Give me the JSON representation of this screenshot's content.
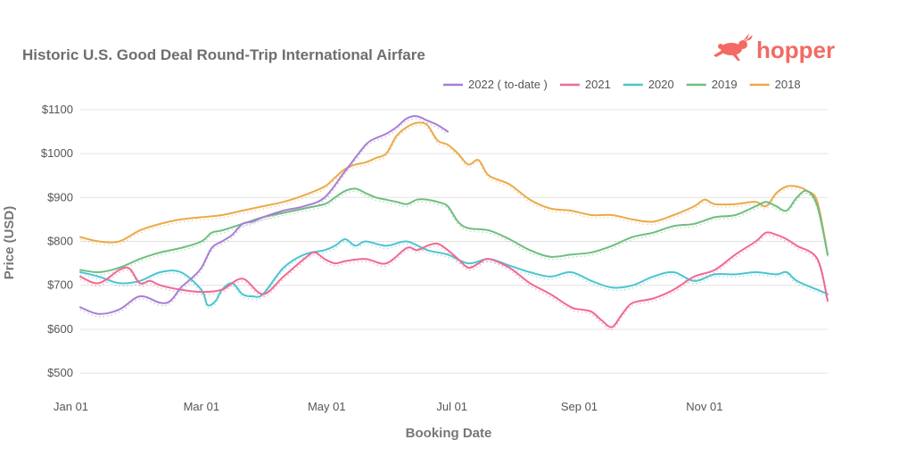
{
  "chart_data": {
    "type": "line",
    "title": "Historic U.S. Good Deal Round-Trip International Airfare",
    "xlabel": "Booking Date",
    "ylabel": "Price (USD)",
    "x_unit": "day_of_year",
    "xlim": [
      1,
      365
    ],
    "ylim": [
      480,
      1120
    ],
    "yticks": [
      500,
      600,
      700,
      800,
      900,
      1000,
      1100
    ],
    "ytick_labels": [
      "$500",
      "$600",
      "$700",
      "$800",
      "$900",
      "$1000",
      "$1100"
    ],
    "xticks": [
      1,
      60,
      121,
      182,
      244,
      305
    ],
    "xtick_labels": [
      "Jan 01",
      "Mar 01",
      "May 01",
      "Jul 01",
      "Sep 01",
      "Nov 01"
    ],
    "grid": true,
    "legend_position": "top-right",
    "series": [
      {
        "name": "2022 ( to-date )",
        "color": "#a77fd1",
        "x": [
          1,
          10,
          20,
          30,
          40,
          45,
          50,
          55,
          60,
          65,
          70,
          75,
          80,
          85,
          90,
          100,
          110,
          120,
          130,
          140,
          145,
          150,
          155,
          160,
          165,
          170,
          175,
          180
        ],
        "y": [
          650,
          635,
          645,
          675,
          660,
          665,
          695,
          715,
          740,
          785,
          800,
          815,
          840,
          845,
          855,
          870,
          880,
          900,
          960,
          1020,
          1035,
          1045,
          1060,
          1080,
          1085,
          1075,
          1065,
          1050
        ]
      },
      {
        "name": "2021",
        "color": "#ee6994",
        "x": [
          1,
          10,
          20,
          25,
          30,
          35,
          40,
          50,
          60,
          70,
          80,
          90,
          100,
          110,
          115,
          120,
          125,
          130,
          140,
          150,
          160,
          165,
          170,
          175,
          180,
          185,
          190,
          195,
          200,
          210,
          220,
          230,
          240,
          245,
          250,
          255,
          260,
          265,
          270,
          280,
          290,
          300,
          310,
          320,
          330,
          335,
          340,
          345,
          350,
          360,
          365
        ],
        "y": [
          720,
          705,
          735,
          738,
          705,
          710,
          700,
          690,
          685,
          690,
          715,
          680,
          720,
          760,
          775,
          760,
          750,
          755,
          760,
          750,
          785,
          780,
          790,
          795,
          780,
          760,
          740,
          750,
          760,
          740,
          705,
          680,
          650,
          645,
          640,
          620,
          605,
          635,
          660,
          670,
          690,
          720,
          735,
          770,
          800,
          820,
          815,
          805,
          790,
          760,
          665
        ]
      },
      {
        "name": "2020",
        "color": "#4dc4cf",
        "x": [
          1,
          10,
          20,
          30,
          40,
          50,
          60,
          63,
          67,
          70,
          75,
          80,
          85,
          90,
          100,
          110,
          120,
          125,
          130,
          135,
          140,
          150,
          160,
          170,
          180,
          190,
          200,
          210,
          220,
          230,
          240,
          250,
          260,
          270,
          280,
          290,
          300,
          310,
          320,
          330,
          340,
          345,
          350,
          360,
          365
        ],
        "y": [
          730,
          720,
          705,
          710,
          730,
          730,
          690,
          655,
          665,
          690,
          705,
          680,
          675,
          680,
          740,
          770,
          780,
          790,
          805,
          790,
          800,
          790,
          800,
          780,
          770,
          750,
          760,
          745,
          730,
          720,
          730,
          710,
          695,
          700,
          720,
          730,
          710,
          725,
          725,
          730,
          725,
          730,
          710,
          690,
          680
        ]
      },
      {
        "name": "2019",
        "color": "#6fbd80",
        "x": [
          1,
          10,
          20,
          30,
          40,
          50,
          60,
          65,
          70,
          80,
          90,
          100,
          110,
          120,
          125,
          130,
          135,
          140,
          145,
          150,
          155,
          160,
          165,
          170,
          175,
          180,
          185,
          190,
          200,
          210,
          220,
          230,
          240,
          250,
          260,
          270,
          280,
          290,
          300,
          310,
          320,
          330,
          335,
          340,
          345,
          350,
          355,
          360,
          365
        ],
        "y": [
          735,
          730,
          740,
          760,
          775,
          785,
          800,
          820,
          825,
          840,
          855,
          865,
          875,
          885,
          900,
          915,
          920,
          910,
          900,
          895,
          890,
          885,
          895,
          895,
          890,
          880,
          845,
          830,
          825,
          805,
          780,
          765,
          770,
          775,
          790,
          810,
          820,
          835,
          840,
          855,
          860,
          880,
          890,
          880,
          870,
          900,
          915,
          880,
          770
        ]
      },
      {
        "name": "2018",
        "color": "#eaaa4a",
        "x": [
          1,
          10,
          20,
          30,
          40,
          50,
          60,
          70,
          80,
          90,
          100,
          110,
          120,
          125,
          130,
          135,
          140,
          145,
          150,
          155,
          160,
          165,
          170,
          175,
          180,
          185,
          190,
          195,
          200,
          210,
          220,
          230,
          240,
          250,
          260,
          270,
          280,
          290,
          300,
          305,
          310,
          320,
          330,
          335,
          340,
          345,
          350,
          355,
          360,
          365
        ],
        "y": [
          810,
          800,
          800,
          825,
          840,
          850,
          855,
          860,
          870,
          880,
          890,
          905,
          925,
          945,
          965,
          975,
          980,
          990,
          1000,
          1040,
          1060,
          1070,
          1065,
          1030,
          1020,
          1000,
          975,
          985,
          950,
          930,
          895,
          875,
          870,
          860,
          860,
          850,
          845,
          860,
          880,
          895,
          885,
          885,
          890,
          880,
          910,
          925,
          925,
          915,
          890,
          770
        ]
      }
    ]
  },
  "brand": {
    "name": "hopper",
    "color": "#f26a63"
  }
}
